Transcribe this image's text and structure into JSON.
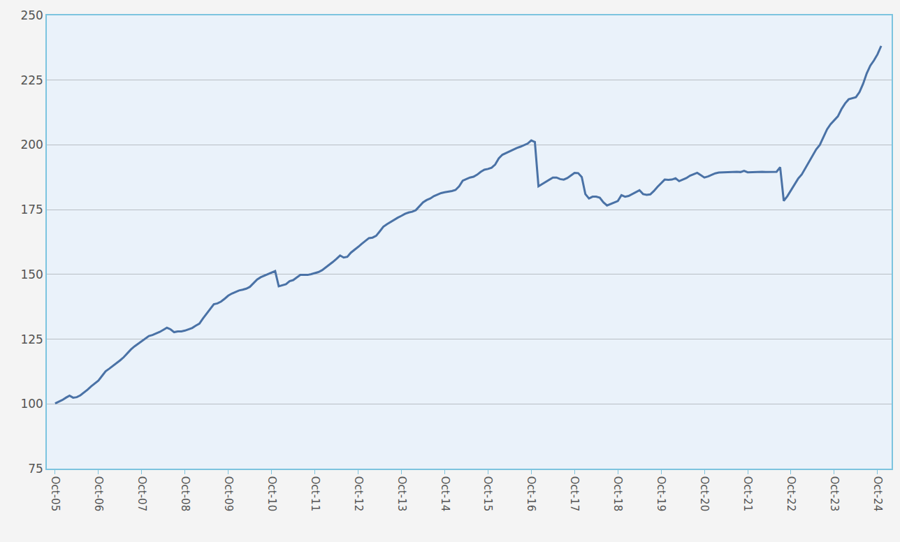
{
  "chart_data": {
    "type": "line",
    "categories": [
      "Oct-05",
      null,
      null,
      null,
      null,
      null,
      null,
      null,
      null,
      null,
      null,
      null,
      "Oct-06",
      null,
      null,
      null,
      null,
      null,
      null,
      null,
      null,
      null,
      null,
      null,
      "Oct-07",
      null,
      null,
      null,
      null,
      null,
      null,
      null,
      null,
      null,
      null,
      null,
      "Oct-08",
      null,
      null,
      null,
      null,
      null,
      null,
      null,
      null,
      null,
      null,
      null,
      "Oct-09",
      null,
      null,
      null,
      null,
      null,
      null,
      null,
      null,
      null,
      null,
      null,
      "Oct-10",
      null,
      null,
      null,
      null,
      null,
      null,
      null,
      null,
      null,
      null,
      null,
      "Oct-11",
      null,
      null,
      null,
      null,
      null,
      null,
      null,
      null,
      null,
      null,
      null,
      "Oct-12",
      null,
      null,
      null,
      null,
      null,
      null,
      null,
      null,
      null,
      null,
      null,
      "Oct-13",
      null,
      null,
      null,
      null,
      null,
      null,
      null,
      null,
      null,
      null,
      null,
      "Oct-14",
      null,
      null,
      null,
      null,
      null,
      null,
      null,
      null,
      null,
      null,
      null,
      "Oct-15",
      null,
      null,
      null,
      null,
      null,
      null,
      null,
      null,
      null,
      null,
      null,
      "Oct-16",
      null,
      null,
      null,
      null,
      null,
      null,
      null,
      null,
      null,
      null,
      null,
      "Oct-17",
      null,
      null,
      null,
      null,
      null,
      null,
      null,
      null,
      null,
      null,
      null,
      "Oct-18",
      null,
      null,
      null,
      null,
      null,
      null,
      null,
      null,
      null,
      null,
      null,
      "Oct-19",
      null,
      null,
      null,
      null,
      null,
      null,
      null,
      null,
      null,
      null,
      null,
      "Oct-20",
      null,
      null,
      null,
      null,
      null,
      null,
      null,
      null,
      null,
      null,
      null,
      "Oct-21",
      null,
      null,
      null,
      null,
      null,
      null,
      null,
      null,
      null,
      null,
      null,
      "Oct-22",
      null,
      null,
      null,
      null,
      null,
      null,
      null,
      null,
      null,
      null,
      null,
      "Oct-23",
      null,
      null,
      null,
      null,
      null,
      null,
      null,
      null,
      null,
      null,
      null,
      "Oct-24",
      null
    ],
    "values": [
      100.2,
      100.8,
      101.5,
      102.4,
      103.2,
      102.4,
      102.6,
      103.3,
      104.3,
      105.5,
      106.8,
      107.8,
      109.0,
      110.8,
      112.6,
      113.6,
      114.6,
      115.6,
      116.8,
      118.0,
      119.5,
      121.0,
      122.2,
      123.2,
      124.3,
      125.3,
      126.2,
      126.6,
      127.1,
      127.8,
      128.6,
      129.4,
      128.8,
      127.7,
      128.0,
      128.0,
      128.3,
      128.8,
      129.3,
      130.2,
      131.0,
      133.0,
      134.8,
      136.6,
      138.5,
      138.8,
      139.5,
      140.6,
      141.8,
      142.6,
      143.2,
      143.8,
      144.1,
      144.5,
      145.2,
      146.5,
      148.0,
      148.9,
      149.5,
      150.2,
      150.9,
      151.3,
      145.4,
      145.7,
      146.2,
      147.4,
      147.8,
      148.8,
      149.8,
      149.8,
      149.8,
      150.1,
      150.4,
      150.9,
      151.6,
      152.6,
      153.6,
      154.8,
      156.0,
      157.3,
      156.5,
      156.8,
      158.4,
      159.4,
      160.6,
      161.8,
      163.0,
      164.0,
      164.2,
      164.9,
      166.6,
      168.4,
      169.4,
      170.3,
      171.0,
      171.9,
      172.6,
      173.4,
      173.9,
      174.2,
      174.8,
      176.2,
      177.8,
      178.7,
      179.3,
      180.2,
      180.9,
      181.4,
      181.7,
      181.9,
      182.2,
      182.6,
      184.0,
      186.2,
      186.8,
      187.4,
      187.7,
      188.5,
      189.6,
      190.4,
      190.7,
      191.2,
      192.4,
      194.8,
      196.2,
      196.9,
      197.5,
      198.2,
      198.8,
      199.3,
      199.8,
      200.5,
      201.7,
      201.1,
      184.0,
      184.9,
      185.8,
      186.5,
      187.4,
      187.4,
      186.8,
      186.6,
      187.2,
      188.2,
      189.2,
      189.1,
      187.6,
      181.0,
      179.3,
      180.0,
      180.0,
      179.6,
      177.8,
      176.6,
      177.2,
      177.9,
      178.3,
      180.6,
      180.0,
      180.3,
      181.0,
      181.9,
      182.5,
      181.0,
      180.7,
      180.9,
      182.2,
      183.8,
      185.2,
      186.6,
      186.5,
      186.6,
      187.1,
      186.0,
      186.6,
      187.2,
      188.1,
      188.7,
      189.2,
      188.3,
      187.4,
      187.8,
      188.5,
      189.0,
      189.3,
      189.4,
      189.5,
      189.5,
      189.5,
      189.6,
      189.5,
      190.0,
      189.4,
      189.5,
      189.5,
      189.6,
      189.6,
      189.5,
      189.5,
      189.6,
      189.6,
      191.4,
      178.4,
      180.2,
      182.5,
      185.0,
      187.0,
      188.6,
      191.0,
      193.4,
      196.0,
      198.3,
      200.0,
      203.0,
      206.0,
      208.0,
      209.5,
      211.0,
      213.8,
      216.0,
      217.6,
      218.0,
      218.4,
      220.4,
      223.6,
      227.6,
      230.6,
      232.6,
      235.0,
      238.2
    ],
    "color": "#4a72a6",
    "ylim": [
      75,
      250
    ],
    "yticks": [
      75,
      100,
      125,
      150,
      175,
      200,
      225,
      250
    ],
    "grid": true
  }
}
